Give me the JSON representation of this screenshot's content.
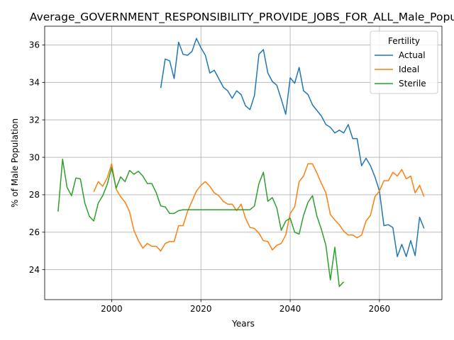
{
  "chart_data": {
    "type": "line",
    "title": "Average_GOVERNMENT_RESPONSIBILITY_PROVIDE_JOBS_FOR_ALL_Male_Popu",
    "xlabel": "Years",
    "ylabel": "% of Male Population",
    "xlim": [
      1985,
      2074
    ],
    "ylim": [
      22.4,
      37.0
    ],
    "xticks": [
      2000,
      2020,
      2040,
      2060
    ],
    "yticks": [
      24,
      26,
      28,
      30,
      32,
      34,
      36
    ],
    "grid": true,
    "legend": {
      "title": "Fertility",
      "position": "top-right"
    },
    "series": [
      {
        "name": "Actual",
        "color": "#1f77b4",
        "x": [
          2011,
          2012,
          2013,
          2014,
          2015,
          2016,
          2017,
          2018,
          2019,
          2020,
          2021,
          2022,
          2023,
          2024,
          2025,
          2026,
          2027,
          2028,
          2029,
          2030,
          2031,
          2032,
          2033,
          2034,
          2035,
          2036,
          2037,
          2038,
          2039,
          2040,
          2041,
          2042,
          2043,
          2044,
          2045,
          2046,
          2047,
          2048,
          2049,
          2050,
          2051,
          2052,
          2053,
          2054,
          2055,
          2056,
          2057,
          2058,
          2059,
          2060,
          2061,
          2062,
          2063,
          2064,
          2065,
          2066,
          2067,
          2068,
          2069,
          2070
        ],
        "values": [
          33.7,
          35.25,
          35.15,
          34.2,
          36.15,
          35.5,
          35.45,
          35.65,
          36.35,
          35.85,
          35.45,
          34.5,
          34.65,
          34.2,
          33.75,
          33.55,
          33.15,
          33.55,
          33.35,
          32.75,
          32.55,
          33.3,
          35.5,
          35.75,
          34.5,
          34.05,
          33.85,
          33.1,
          32.3,
          34.25,
          33.95,
          34.8,
          33.55,
          33.35,
          32.8,
          32.5,
          32.2,
          31.75,
          31.6,
          31.3,
          31.45,
          31.3,
          31.75,
          31.0,
          31.0,
          29.55,
          29.95,
          29.55,
          28.95,
          28.2,
          26.35,
          26.4,
          26.25,
          24.7,
          25.35,
          24.7,
          25.55,
          24.75,
          26.8,
          26.2
        ]
      },
      {
        "name": "Ideal",
        "color": "#ff7f0e",
        "x": [
          1996,
          1997,
          1998,
          1999,
          2000,
          2001,
          2002,
          2003,
          2004,
          2005,
          2006,
          2007,
          2008,
          2009,
          2010,
          2011,
          2012,
          2013,
          2014,
          2015,
          2016,
          2017,
          2018,
          2019,
          2020,
          2021,
          2022,
          2023,
          2024,
          2025,
          2026,
          2027,
          2028,
          2029,
          2030,
          2031,
          2032,
          2033,
          2034,
          2035,
          2036,
          2037,
          2038,
          2039,
          2040,
          2041,
          2042,
          2043,
          2044,
          2045,
          2046,
          2047,
          2048,
          2049,
          2050,
          2051,
          2052,
          2053,
          2054,
          2055,
          2056,
          2057,
          2058,
          2059,
          2060,
          2061,
          2062,
          2063,
          2064,
          2065,
          2066,
          2067,
          2068,
          2069,
          2070
        ],
        "values": [
          28.15,
          28.7,
          28.45,
          28.9,
          29.65,
          28.3,
          27.9,
          27.6,
          27.1,
          26.1,
          25.55,
          25.15,
          25.4,
          25.25,
          25.25,
          25.0,
          25.4,
          25.5,
          25.5,
          26.35,
          26.35,
          27.1,
          27.65,
          28.2,
          28.5,
          28.7,
          28.45,
          28.1,
          27.95,
          27.65,
          27.5,
          27.5,
          27.15,
          27.5,
          26.75,
          26.25,
          26.2,
          25.95,
          25.55,
          25.5,
          25.05,
          25.3,
          25.4,
          25.85,
          27.0,
          27.35,
          28.7,
          29.0,
          29.65,
          29.65,
          29.15,
          28.6,
          28.1,
          26.95,
          26.65,
          26.4,
          26.05,
          25.85,
          25.85,
          25.7,
          25.85,
          26.6,
          26.9,
          27.9,
          28.2,
          28.75,
          28.75,
          29.2,
          29.0,
          29.35,
          28.85,
          29.0,
          28.1,
          28.5,
          27.9
        ]
      },
      {
        "name": "Sterile",
        "color": "#2ca02c",
        "x": [
          1988,
          1989,
          1990,
          1991,
          1992,
          1993,
          1994,
          1995,
          1996,
          1997,
          1998,
          1999,
          2000,
          2001,
          2002,
          2003,
          2004,
          2005,
          2006,
          2007,
          2008,
          2009,
          2010,
          2011,
          2012,
          2013,
          2014,
          2015,
          2016,
          2017,
          2018,
          2019,
          2020,
          2021,
          2022,
          2023,
          2024,
          2025,
          2026,
          2027,
          2028,
          2029,
          2030,
          2031,
          2032,
          2033,
          2034,
          2035,
          2036,
          2037,
          2038,
          2039,
          2040,
          2041,
          2042,
          2043,
          2044,
          2045,
          2046,
          2047,
          2048,
          2049,
          2050,
          2051,
          2052
        ],
        "values": [
          27.1,
          29.9,
          28.4,
          27.95,
          28.9,
          28.85,
          27.55,
          26.85,
          26.6,
          27.55,
          27.95,
          28.55,
          29.45,
          28.35,
          28.95,
          28.7,
          29.3,
          29.1,
          29.25,
          29.0,
          28.6,
          28.6,
          28.1,
          27.4,
          27.35,
          27.0,
          27.0,
          27.15,
          27.2,
          27.2,
          27.2,
          27.2,
          27.2,
          27.2,
          27.2,
          27.2,
          27.2,
          27.2,
          27.2,
          27.2,
          27.2,
          27.2,
          27.2,
          27.2,
          27.4,
          28.6,
          29.2,
          27.65,
          27.85,
          27.3,
          26.1,
          26.6,
          26.75,
          26.0,
          25.9,
          26.9,
          27.6,
          27.95,
          26.85,
          26.15,
          25.3,
          23.45,
          25.2,
          23.1,
          23.35
        ]
      }
    ]
  }
}
